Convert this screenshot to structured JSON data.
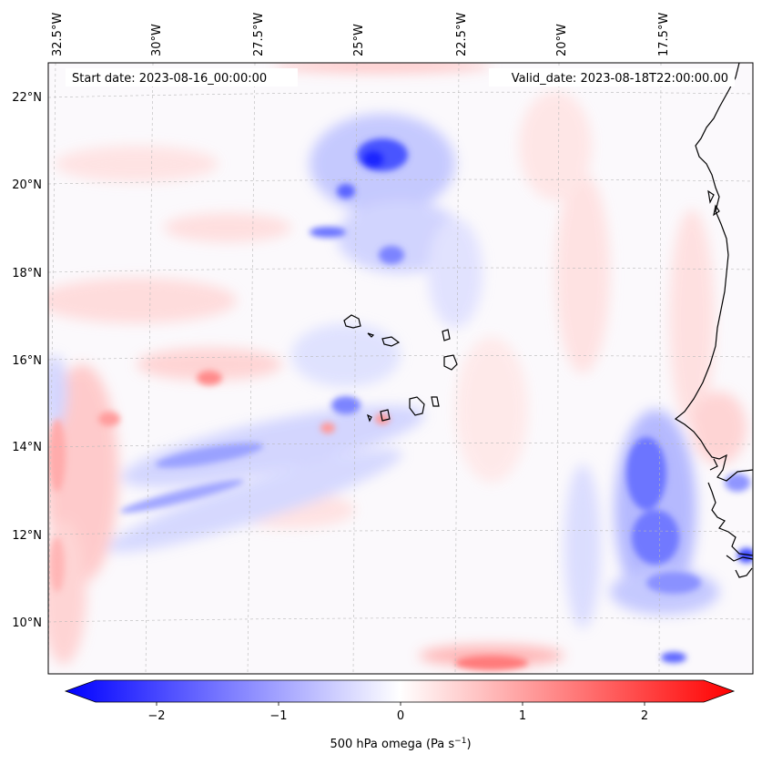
{
  "map": {
    "start_date": "Start date: 2023-08-16_00:00:00",
    "valid_date": "Valid_date: 2023-08-18T22:00:00.00",
    "lon_labels": [
      "32.5°W",
      "30°W",
      "27.5°W",
      "25°W",
      "22.5°W",
      "20°W",
      "17.5°W"
    ],
    "lat_labels": [
      "22°N",
      "20°N",
      "18°N",
      "16°N",
      "14°N",
      "12°N",
      "10°N"
    ]
  },
  "colorbar": {
    "ticks": [
      "−2",
      "−1",
      "0",
      "1",
      "2"
    ],
    "label_main": "500 hPa omega (Pa s",
    "label_sup": "−1",
    "label_end": ")",
    "range": [
      -2.6,
      2.6
    ],
    "colors": {
      "negative": "#0000ff",
      "zero": "#ffffff",
      "positive": "#ff0000"
    }
  }
}
